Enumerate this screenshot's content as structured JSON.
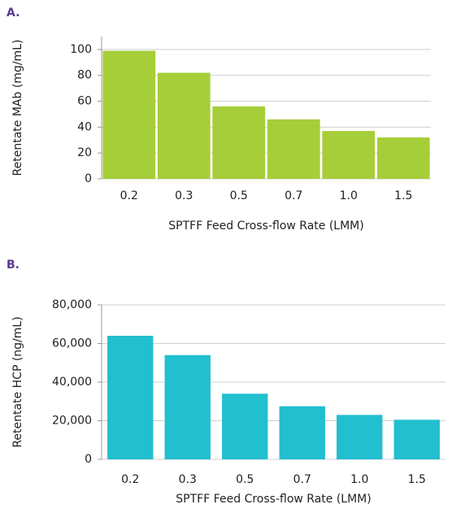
{
  "chart_data": [
    {
      "type": "bar",
      "panel_label": "A.",
      "x_label": "SPTFF Feed Cross-flow Rate (LMM)",
      "y_label": "Retentate MAb  (mg/mL)",
      "categories": [
        "0.2",
        "0.3",
        "0.5",
        "0.7",
        "1.0",
        "1.5"
      ],
      "values": [
        99,
        82,
        56,
        46,
        37,
        32
      ],
      "color": "#a6ce39",
      "ylim": [
        0,
        110
      ],
      "yticks": [
        0,
        20,
        40,
        60,
        80,
        100
      ],
      "grid": true
    },
    {
      "type": "bar",
      "panel_label": "B.",
      "x_label": "SPTFF Feed Cross-flow Rate (LMM)",
      "y_label": "Retentate HCP (ng/mL)",
      "categories": [
        "0.2",
        "0.3",
        "0.5",
        "0.7",
        "1.0",
        "1.5"
      ],
      "values": [
        64000,
        54000,
        34000,
        27500,
        23000,
        20500
      ],
      "color": "#22bfcf",
      "ylim": [
        0,
        80000
      ],
      "yticks": [
        0,
        {
          "value": 20000,
          "label": "20,000"
        },
        {
          "value": 40000,
          "label": "40,000"
        },
        {
          "value": 60000,
          "label": "60,000"
        },
        {
          "value": 80000,
          "label": "80,000"
        }
      ],
      "grid": true
    }
  ]
}
